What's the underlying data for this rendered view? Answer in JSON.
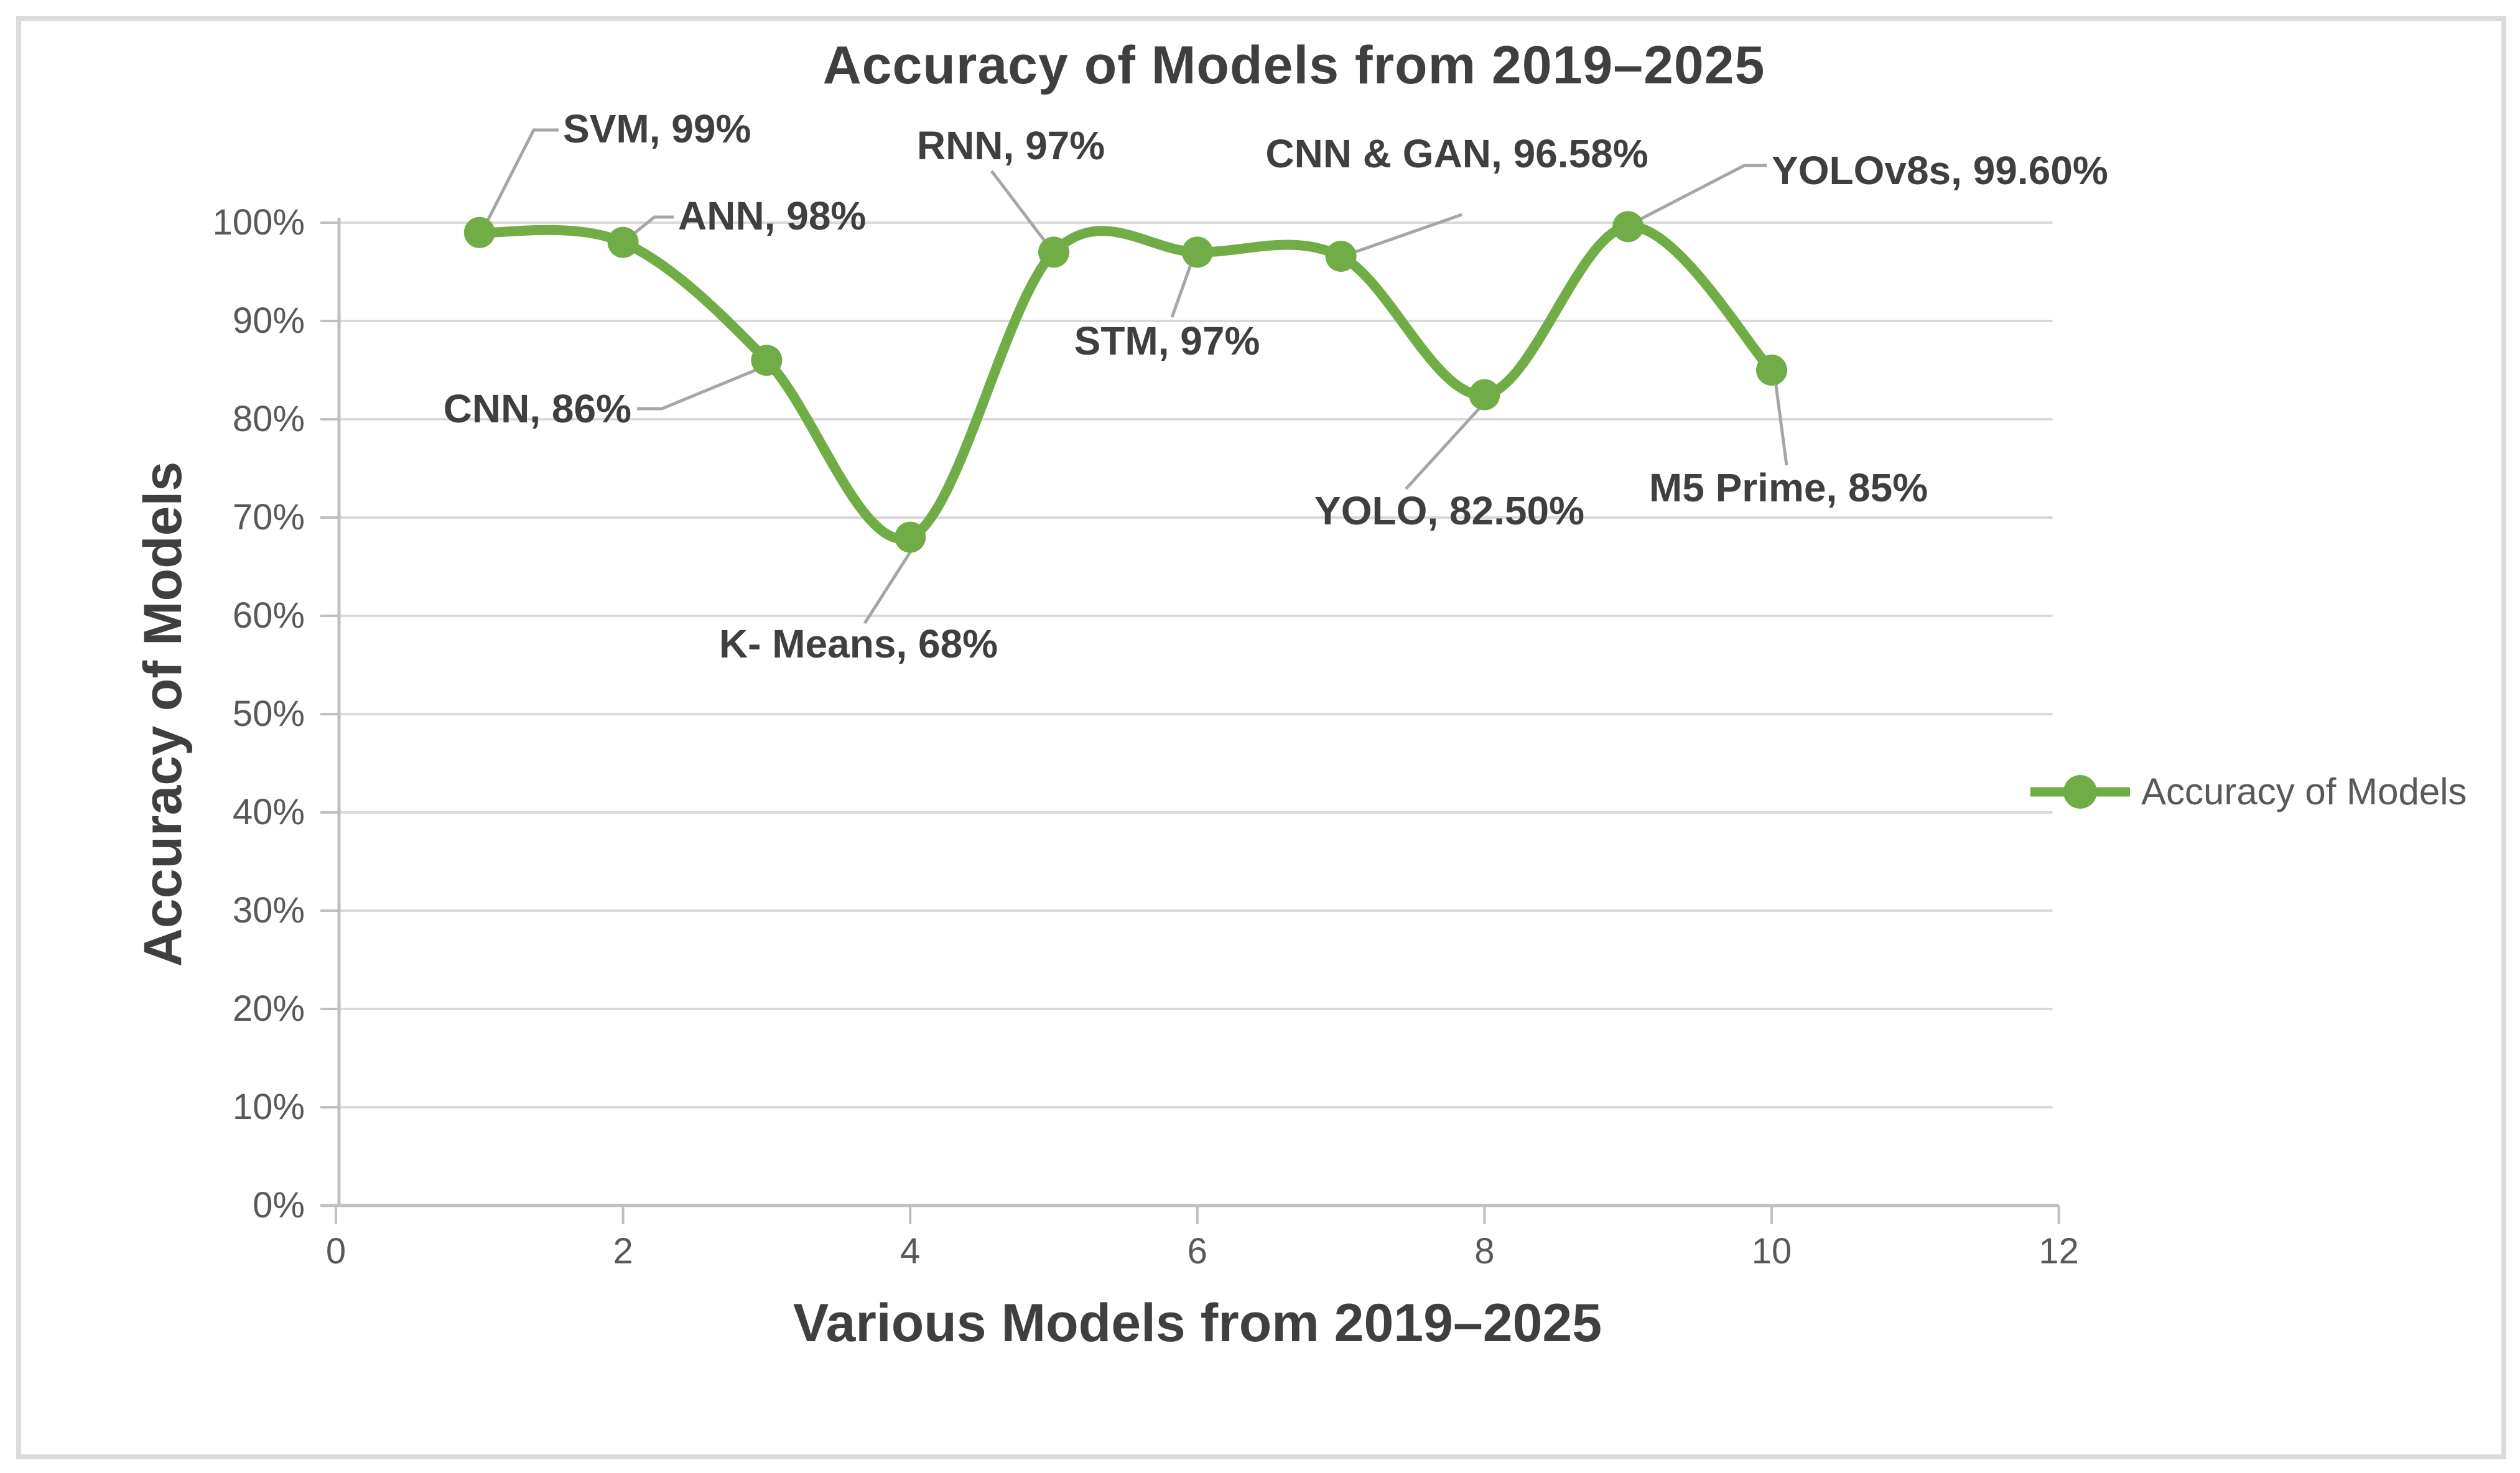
{
  "chart_data": {
    "type": "line",
    "smoothed": true,
    "title": "Accuracy of Models from 2019–2025",
    "xlabel": "Various Models from 2019–2025",
    "ylabel": "Accuracy of Models",
    "xlim": [
      0,
      12
    ],
    "ylim_percent": [
      0,
      100
    ],
    "x_ticks": [
      "0",
      "2",
      "4",
      "6",
      "8",
      "10",
      "12"
    ],
    "y_ticks": [
      "0%",
      "10%",
      "20%",
      "30%",
      "40%",
      "50%",
      "60%",
      "70%",
      "80%",
      "90%",
      "100%"
    ],
    "grid": "horizontal",
    "legend": {
      "position": "right",
      "entries": [
        "Accuracy of Models"
      ]
    },
    "series": [
      {
        "name": "Accuracy of Models",
        "color": "#70AD47",
        "x": [
          1,
          2,
          3,
          4,
          5,
          6,
          7,
          8,
          9,
          10
        ],
        "values": [
          99,
          98,
          86,
          68,
          97,
          97,
          96.58,
          82.5,
          99.6,
          85
        ],
        "point_labels": [
          "SVM, 99%",
          "ANN, 98%",
          "CNN, 86%",
          "K- Means, 68%",
          "RNN, 97%",
          "STM, 97%",
          "CNN & GAN, 96.58%",
          "YOLO, 82.50%",
          "YOLOv8s, 99.60%",
          "M5 Prime, 85%"
        ]
      }
    ]
  },
  "colors": {
    "series_green": "#70AD47",
    "gridline": "#d9d9d9",
    "axis_line": "#bfbfbf",
    "leader_line": "#a6a6a6",
    "tick_text": "#595959",
    "label_text": "#3f3f3f",
    "frame_border": "#dbdbdb",
    "background": "#ffffff"
  }
}
